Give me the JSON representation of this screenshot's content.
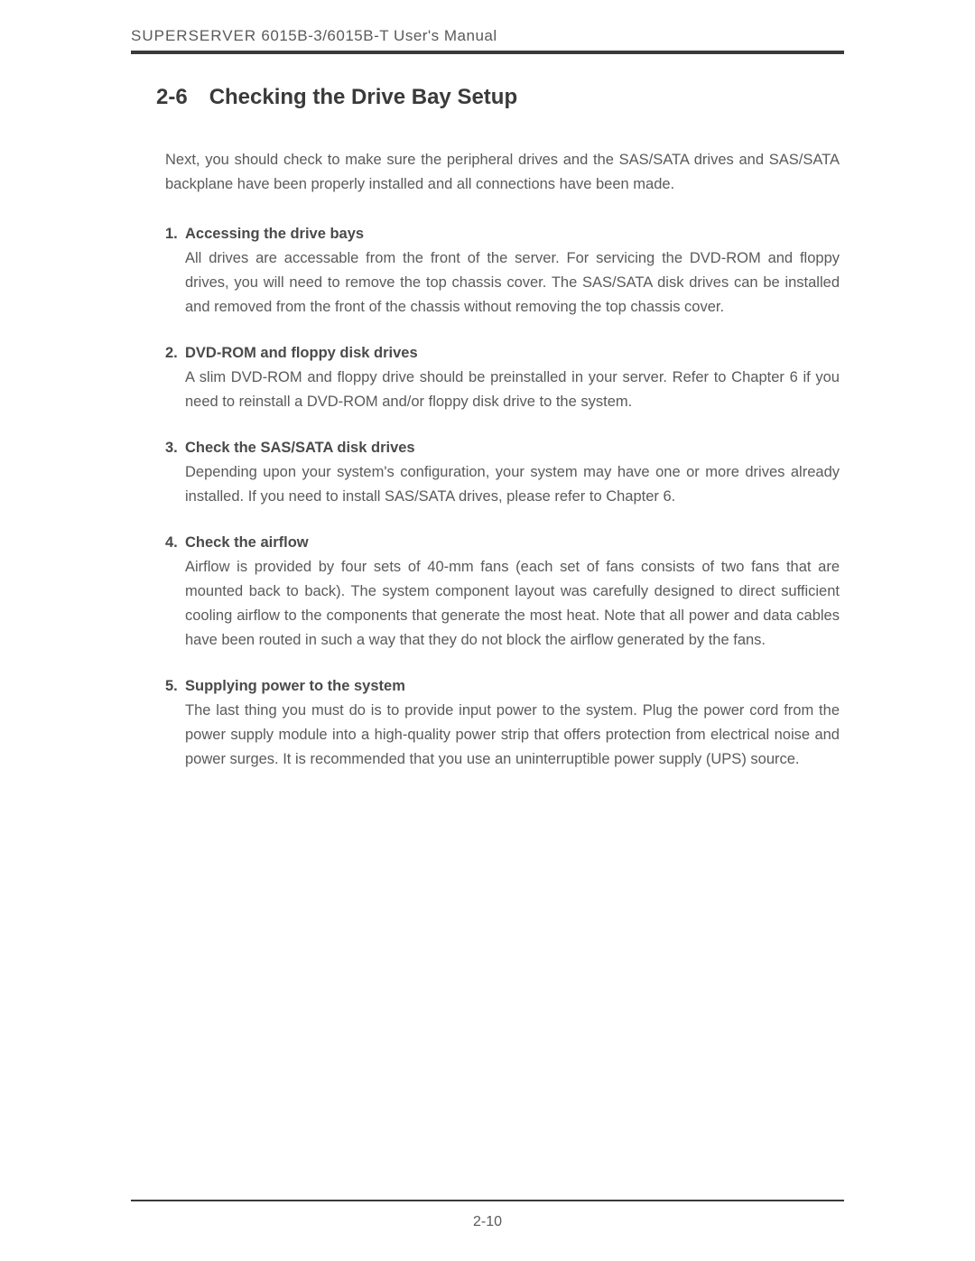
{
  "header": {
    "product": "SUPERSERVER",
    "model": "6015B-3/6015B-T User's Manual"
  },
  "section": {
    "number": "2-6",
    "title": "Checking the Drive Bay Setup"
  },
  "intro": "Next, you should check to make sure the peripheral drives and the SAS/SATA drives and SAS/SATA backplane have been properly installed and all connections have been made.",
  "items": [
    {
      "num": "1.",
      "heading": "Accessing the drive bays",
      "body": "All drives are accessable from the front of the server.  For servicing the DVD-ROM and floppy drives, you will need to remove the top chassis cover.  The SAS/SATA disk drives can be installed and removed from the front of the chassis without removing the top chassis cover."
    },
    {
      "num": "2.",
      "heading": "DVD-ROM and floppy disk drives",
      "body": "A slim DVD-ROM and floppy drive should be preinstalled in your server.  Refer to Chapter 6 if you need to reinstall a DVD-ROM and/or floppy disk drive to the system."
    },
    {
      "num": "3.",
      "heading": "Check the SAS/SATA disk drives",
      "body": "Depending upon your system's configuration, your system may have one  or more drives already installed.  If you need to install SAS/SATA drives, please refer to Chapter 6."
    },
    {
      "num": "4.",
      "heading": "Check the airflow",
      "body": "Airflow is provided by four sets of 40-mm fans (each set of fans consists of two fans that are mounted back to back).  The system component layout was carefully designed to direct sufficient cooling airflow to the components that generate the most heat.  Note that all power and data cables have been routed in such a way that they do not block the airflow generated by the fans."
    },
    {
      "num": "5.",
      "heading": "Supplying power to the system",
      "body": "The last thing you must do is to provide input power to the system.  Plug the power cord from the power supply module into a high-quality power strip that offers protection from electrical noise and power surges.  It is recommended that you use an uninterruptible power supply (UPS) source."
    }
  ],
  "pageNumber": "2-10"
}
